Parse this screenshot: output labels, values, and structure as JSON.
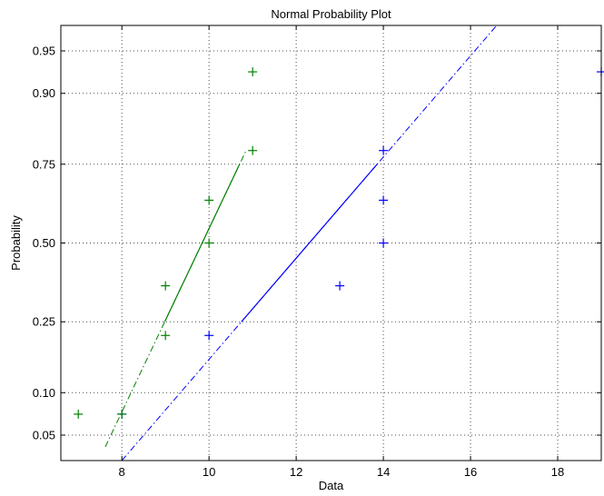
{
  "chart_data": {
    "type": "scatter",
    "title": "Normal Probability Plot",
    "xlabel": "Data",
    "ylabel": "Probability",
    "xlim": [
      6.6,
      19
    ],
    "ylim": [
      0.03125,
      0.96875
    ],
    "yscale": "normal-probability",
    "grid": true,
    "x_ticks": [
      8,
      10,
      12,
      14,
      16,
      18
    ],
    "x_tick_labels": [
      "8",
      "10",
      "12",
      "14",
      "16",
      "18"
    ],
    "y_ticks": [
      0.05,
      0.1,
      0.25,
      0.5,
      0.75,
      0.9,
      0.95
    ],
    "y_tick_labels": [
      "0.05",
      "0.10",
      "0.25",
      "0.50",
      "0.75",
      "0.90",
      "0.95"
    ],
    "colors": {
      "series1": "#0000ff",
      "series2": "#008000"
    },
    "series": [
      {
        "marker": "+",
        "color": "#0000ff",
        "x": [
          8,
          10,
          13,
          14,
          14,
          14,
          19
        ],
        "y": [
          0.0714,
          0.2143,
          0.3571,
          0.5,
          0.6429,
          0.7857,
          0.9286
        ],
        "fit_line": {
          "x_start": 8.0,
          "x_end": 16.6,
          "y_at_start": 0.03125,
          "y_at_end": 0.96875,
          "solid_from_quantile": 0.25,
          "solid_to_quantile": 0.75
        }
      },
      {
        "marker": "+",
        "color": "#008000",
        "x": [
          7,
          8,
          9,
          9,
          10,
          10,
          11,
          11
        ],
        "y": [
          0.0714,
          0.0714,
          0.2143,
          0.3571,
          0.5,
          0.6429,
          0.7857,
          0.9286
        ],
        "fit_line": {
          "x_start": 7.62,
          "x_end": 10.85,
          "y_at_start": 0.0405,
          "y_at_end": 0.7857,
          "solid_from_quantile": 0.25,
          "solid_to_quantile": 0.75
        }
      }
    ]
  }
}
